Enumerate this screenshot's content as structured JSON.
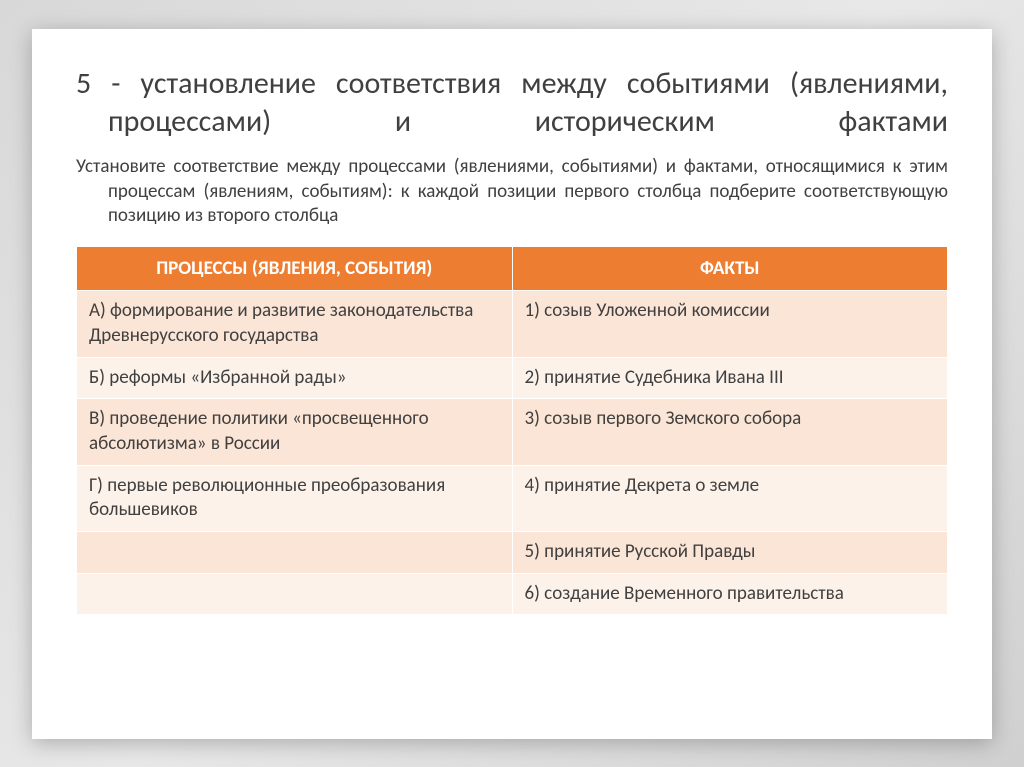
{
  "title_line": "5 - установление соответствия между событиями (явлениями, процессами) и историческим фактами",
  "subtitle": "Установите соответствие между процессами (явлениями, событиями) и фактами, относящимися к этим процессам (явлениям, событиям): к каждой позиции первого столбца подберите соответствующую позицию из второго столбца",
  "table": {
    "header_left": "ПРОЦЕССЫ (ЯВЛЕНИЯ, СОБЫТИЯ)",
    "header_right": "ФАКТЫ",
    "rows": [
      {
        "left": "А) формирование и развитие законодательства Древнерусского государства",
        "right": "1) созыв Уложенной комиссии"
      },
      {
        "left": "Б) реформы «Избранной рады»",
        "right": "2) принятие Судебника Ивана III"
      },
      {
        "left": "В) проведение политики «просвещенного абсолютизма» в России",
        "right": "3) созыв первого Земского собора"
      },
      {
        "left": "Г) первые революционные преобразования большевиков",
        "right": "4) принятие Декрета о земле"
      },
      {
        "left": "",
        "right": "5) принятие Русской Правды"
      },
      {
        "left": "",
        "right": "6) создание Временного правительства"
      }
    ]
  },
  "colors": {
    "header_bg": "#ed7d31",
    "header_text": "#ffffff",
    "band_a": "#fbe5d6",
    "band_b": "#fdf2ea",
    "text": "#404040",
    "slide_bg": "#ffffff"
  },
  "fontsize": {
    "title": 30,
    "subtitle": 19,
    "table": 19
  }
}
